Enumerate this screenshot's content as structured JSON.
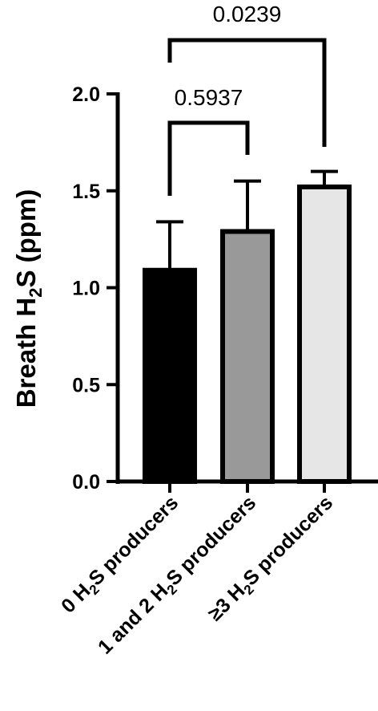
{
  "chart_data": {
    "type": "bar",
    "ylabel": {
      "main": "Breath H",
      "sub": "2",
      "tail": "S (ppm)"
    },
    "ylim": [
      0,
      2.0
    ],
    "yticks": [
      {
        "value": 0.0,
        "label": "0.0"
      },
      {
        "value": 0.5,
        "label": "0.5"
      },
      {
        "value": 1.0,
        "label": "1.0"
      },
      {
        "value": 1.5,
        "label": "1.5"
      },
      {
        "value": 2.0,
        "label": "2.0"
      }
    ],
    "categories": [
      {
        "label_parts": [
          [
            "0 H",
            "n"
          ],
          [
            "2",
            "s"
          ],
          [
            "S producers",
            "n"
          ]
        ],
        "value": 1.09,
        "error": 0.25,
        "color": "#000000"
      },
      {
        "label_parts": [
          [
            "1 and 2 H",
            "n"
          ],
          [
            "2",
            "s"
          ],
          [
            "S producers",
            "n"
          ]
        ],
        "value": 1.29,
        "error": 0.26,
        "color": "#999999"
      },
      {
        "label_parts": [
          [
            "≥3 H",
            "n"
          ],
          [
            "2",
            "s"
          ],
          [
            "S producers",
            "n"
          ]
        ],
        "value": 1.52,
        "error": 0.08,
        "color": "#e6e6e6"
      }
    ],
    "comparisons": [
      {
        "from": 0,
        "to": 1,
        "label": "0.5937"
      },
      {
        "from": 0,
        "to": 2,
        "label": "0.0239"
      }
    ],
    "grid": false,
    "legend": "none"
  }
}
